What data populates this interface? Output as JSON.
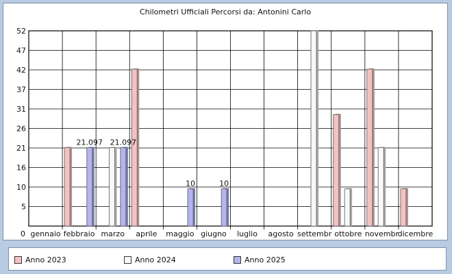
{
  "chart_data": {
    "type": "bar",
    "title": "Chilometri Ufficiali Percorsi da: Antonini Carlo",
    "categories": [
      "gennaio",
      "febbraio",
      "marzo",
      "aprile",
      "maggio",
      "giugno",
      "luglio",
      "agosto",
      "settembr",
      "ottobre",
      "novembr",
      "dicembre"
    ],
    "y_ticks": [
      "0",
      "5",
      "10",
      "16",
      "21",
      "26",
      "31",
      "37",
      "42",
      "47",
      "52"
    ],
    "ylim": [
      0,
      52.5
    ],
    "grid": true,
    "legend_position": "bottom",
    "series": [
      {
        "name": "Anno 2023",
        "color": "#f4c2c2",
        "shade": "#b09090",
        "values": [
          0,
          21.097,
          0,
          42.195,
          0,
          0,
          0,
          0,
          0,
          30,
          42.195,
          10
        ]
      },
      {
        "name": "Anno 2024",
        "color": "#f8f8f8",
        "shade": "#a8a8a8",
        "values": [
          0,
          0,
          21.097,
          0,
          0,
          0,
          0,
          0,
          52.5,
          10,
          21.097,
          0
        ]
      },
      {
        "name": "Anno 2025",
        "color": "#b4b4f0",
        "shade": "#7a7ab0",
        "values": [
          0,
          21.097,
          21.097,
          0,
          10,
          10,
          0,
          0,
          0,
          0,
          0,
          0
        ]
      }
    ],
    "data_labels": [
      {
        "series": 2,
        "index": 1,
        "text": "21.097"
      },
      {
        "series": 2,
        "index": 2,
        "text": "21.097"
      },
      {
        "series": 2,
        "index": 4,
        "text": "10"
      },
      {
        "series": 2,
        "index": 5,
        "text": "10"
      }
    ]
  }
}
